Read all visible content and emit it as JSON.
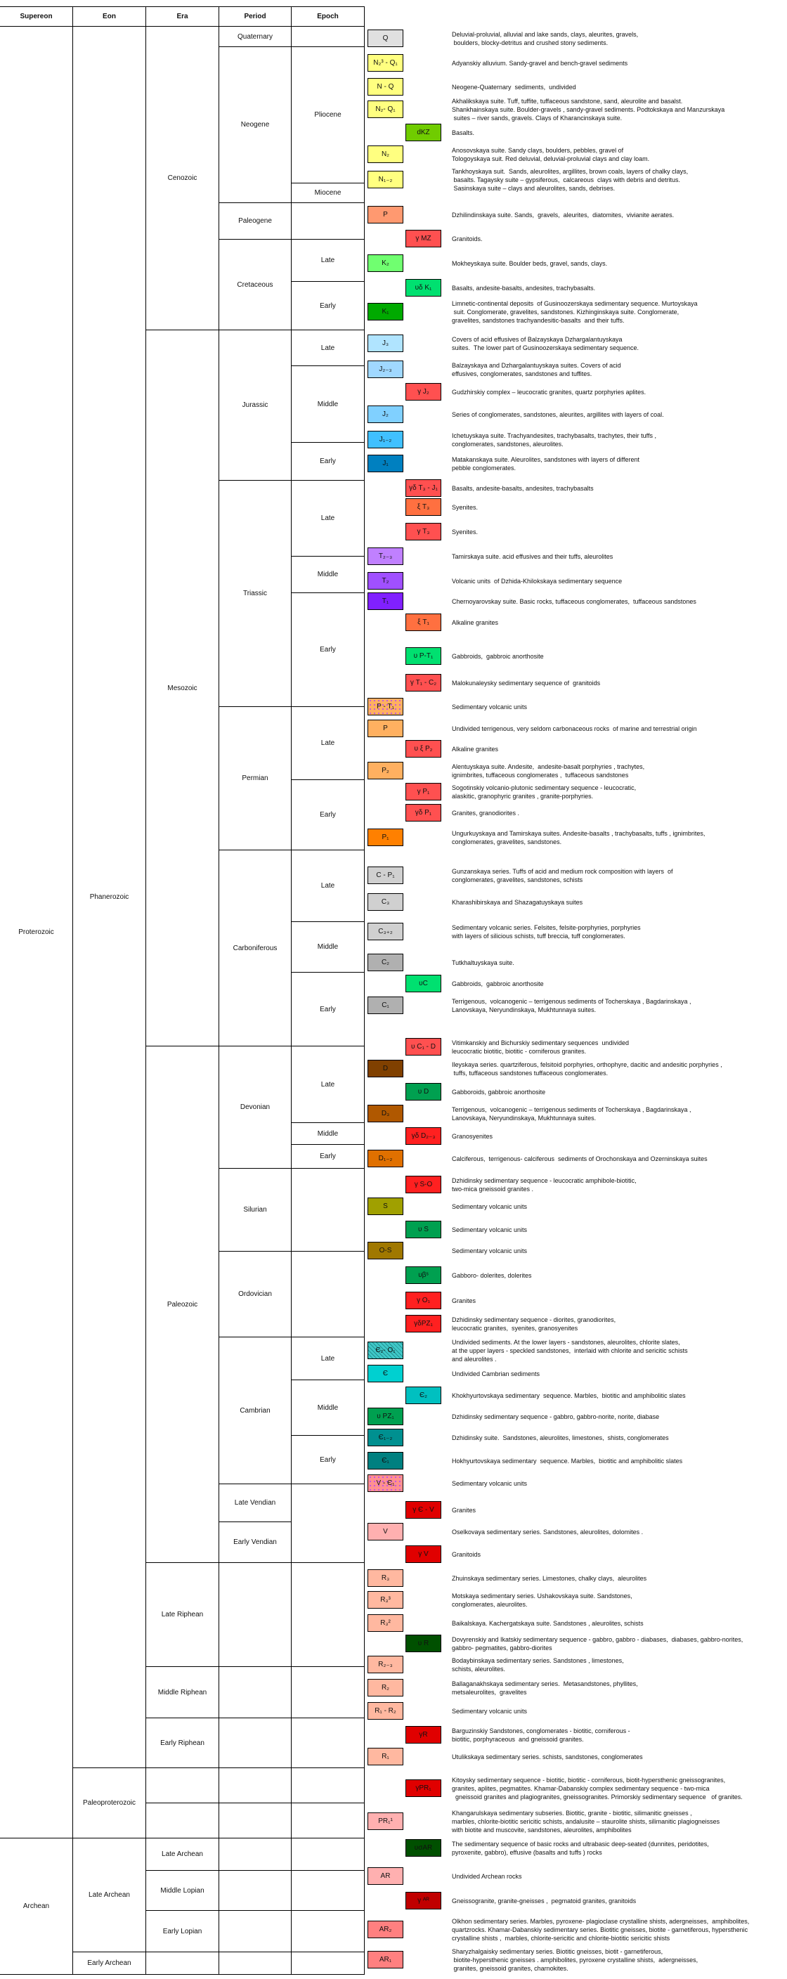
{
  "headers": [
    "Supereon",
    "Eon",
    "Era",
    "Period",
    "Epoch"
  ],
  "supereon": [
    "Proterozoic",
    "Archean"
  ],
  "eon": [
    "Phanerozoic",
    "Paleoproterozoic",
    "Late Archean",
    "Early Archean"
  ],
  "era": [
    "Cenozoic",
    "Mesozoic",
    "Paleozoic",
    "Late Riphean",
    "Middle Riphean",
    "Early Riphean",
    "",
    "",
    "Late Archean",
    "Middle Lopian",
    "Early Lopian",
    ""
  ],
  "period": [
    "Quaternary",
    "Neogene",
    "Paleogene",
    "Cretaceous",
    "Jurassic",
    "Triassic",
    "Permian",
    "Carboniferous",
    "Devonian",
    "Silurian",
    "Ordovician",
    "Cambrian",
    "Late Vendian",
    "Early Vendian",
    "",
    "",
    "",
    "",
    "",
    "",
    "",
    "",
    ""
  ],
  "epoch": [
    "",
    "Pliocene",
    "Miocene",
    "",
    "Late",
    "Early",
    "Late",
    "Middle",
    "Early",
    "Late",
    "Middle",
    "Early",
    "Late",
    "Early",
    "Late",
    "Middle",
    "Early",
    "Late",
    "Middle",
    "Early",
    "",
    "",
    "Late",
    "Middle",
    "Early",
    "",
    "",
    "",
    "",
    "",
    "",
    "",
    "",
    "",
    ""
  ],
  "legend": [
    {
      "code": "Q",
      "color": "#e0e0e0",
      "text": [
        "Deluvial-proluvial, alluvial and lake sands, clays, aleurites, gravels,",
        " boulders, blocky-detritus and crushed stony sediments."
      ]
    },
    {
      "code": "N₂³ - Q₁",
      "color": "#ffff80",
      "text": [
        "Adyanskiy alluvium. Sandy-gravel and bench-gravel sediments"
      ]
    },
    {
      "code": "N - Q",
      "color": "#ffff80",
      "text": [
        "Neogene-Quaternary  sediments,  undivided"
      ]
    },
    {
      "code": "N₂- Q₁",
      "color": "#ffff80",
      "text": [
        "Akhalikskaya suite. Tuff, tuffite, tuffaceous sandstone, sand, aleurolite and basalst.",
        "Shankhainskaya suite. Boulder-gravels , sandy-gravel sediments. Podtokskaya and Manzurskaya",
        " suites – river sands, gravels. Clays of Kharancinskaya suite."
      ]
    },
    {
      "code": "dKZ",
      "color": "#70cc00",
      "text": [
        "Basalts."
      ]
    },
    {
      "code": "N₂",
      "color": "#ffff80",
      "text": [
        "Anosovskaya suite. Sandy clays, boulders, pebbles, gravel of",
        "Tologoyskaya suit. Red deluvial, deluvial-proluvial clays and clay loam."
      ]
    },
    {
      "code": "N₁₋₂",
      "color": "#ffff80",
      "text": [
        "Tankhoyskaya suit.  Sands, aleurolites, argillites, brown coals, layers of chalky clays,",
        " basalts. Tagaysky suite – gypsiferous,  calcareous  clays with debris and detritus.",
        " Sasinskaya suite – clays and aleurolites, sands, debrises."
      ]
    },
    {
      "code": "P",
      "color": "#ff9970",
      "text": [
        "Dzhilindinskaya suite. Sands,  gravels,  aleurites,  diatomites,  vivianite aerates."
      ]
    },
    {
      "code": "γ MZ",
      "color": "#ff5050",
      "text": [
        "Granitoids."
      ]
    },
    {
      "code": "K₂",
      "color": "#70ff70",
      "text": [
        "Mokheyskaya suite. Boulder beds, gravel, sands, clays."
      ]
    },
    {
      "code": "υδ K₁",
      "color": "#00e070",
      "text": [
        "Basalts, andesite-basalts, andesites, trachybasalts."
      ]
    },
    {
      "code": "K₁",
      "color": "#00aa00",
      "text": [
        "Limnetic-continental deposits  of Gusinoozerskaya sedimentary sequence. Murtoyskaya",
        " suit. Conglomerate, gravelites, sandstones. Kizhinginskaya suite. Conglomerate,",
        "gravelites, sandstones trachyandesitic-basalts  and their tuffs."
      ]
    },
    {
      "code": "J₃",
      "color": "#b0e4ff",
      "text": [
        "Covers of acid effusives of Balzayskaya Dzhargalantuyskaya",
        "suites.  The lower part of Gusinoozerskaya sedimentary sequence."
      ]
    },
    {
      "code": "J₂₋₃",
      "color": "#a0d8ff",
      "text": [
        "Balzayskaya and Dzhargalantuyskaya suites. Covers of acid",
        "effusives, conglomerates, sandstones and tuffites."
      ]
    },
    {
      "code": "γ J₂",
      "color": "#ff5050",
      "text": [
        "Gudzhirskiy complex – leucocratic granites, quartz porphyries aplites."
      ]
    },
    {
      "code": "J₂",
      "color": "#80d0ff",
      "text": [
        "Series of conglomerates, sandstones, aleurites, argillites with layers of coal."
      ]
    },
    {
      "code": "J₁₋₂",
      "color": "#40c0ff",
      "text": [
        "Ichetuyskaya suite. Trachyandesites, trachybasalts, trachytes, their tuffs ,",
        "conglomerates, sandstones, aleurolites."
      ]
    },
    {
      "code": "J₁",
      "color": "#0080c0",
      "text": [
        "Matakanskaya suite. Aleurolites, sandstones with layers of different",
        "pebble conglomerates."
      ]
    },
    {
      "code": "γδ T₃ - J₁",
      "color": "#ff5050",
      "text": [
        "Basalts, andesite-basalts, andesites, trachybasalts"
      ]
    },
    {
      "code": "ξ T₃",
      "color": "#ff7040",
      "text": [
        "Syenites."
      ]
    },
    {
      "code": "γ T₃",
      "color": "#ff5050",
      "text": [
        "Syenites."
      ]
    },
    {
      "code": "T₂₋₃",
      "color": "#c080ff",
      "text": [
        "Tamirskaya suite. acid effusives and their tuffs, aleurolites"
      ]
    },
    {
      "code": "T₂",
      "color": "#a050ff",
      "text": [
        "Volcanic units  of Dzhida-Khilokskaya sedimentary sequence"
      ]
    },
    {
      "code": "T₁",
      "color": "#8020ff",
      "text": [
        "Chernoyarovskay suite. Basic rocks, tuffaceous conglomerates,  tuffaceous sandstones"
      ]
    },
    {
      "code": "ξ T₁",
      "color": "#ff7040",
      "text": [
        "Alkaline granites"
      ]
    },
    {
      "code": "υ P-T₁",
      "color": "#00e070",
      "text": [
        "Gabbroids,  gabbroic anorthosite"
      ]
    },
    {
      "code": "γ T₁ - C₂",
      "color": "#ff5050",
      "text": [
        "Malokunaleysky sedimentary sequence of  granitoids"
      ]
    },
    {
      "code": "P - T₁",
      "color": "#ffb060",
      "text": [
        "Sedimentary volcanic units"
      ]
    },
    {
      "code": "P",
      "color": "#ffb060",
      "text": [
        "Undivided terrigenous, very seldom carbonaceous rocks  of marine and terrestrial origin"
      ]
    },
    {
      "code": "υ ξ P₂",
      "color": "#ff5050",
      "text": [
        "Alkaline granites"
      ]
    },
    {
      "code": "P₂",
      "color": "#ffb060",
      "text": [
        "Alentuyskaya suite. Andesite,  andesite-basalt porphyries , trachytes,",
        "ignimbrites, tuffaceous conglomerates ,  tuffaceous sandstones"
      ]
    },
    {
      "code": "γ P₁",
      "color": "#ff5050",
      "text": [
        "Sogotinskiy volcanio-plutonic sedimentary sequence - leucocratic,",
        "alaskitic, granophyric granites , granite-porphyries."
      ]
    },
    {
      "code": "γδ P₁",
      "color": "#ff5050",
      "text": [
        "Granites, granodiorites ."
      ]
    },
    {
      "code": "P₁",
      "color": "#ff8000",
      "text": [
        "Ungurkuyskaya and Tamirskaya suites. Andesite-basalts , trachybasalts, tuffs , ignimbrites,",
        "conglomerates, gravelites, sandstones."
      ]
    },
    {
      "code": "C - P₁",
      "color": "#d0d0d0",
      "text": [
        "Gunzanskaya series. Tuffs of acid and medium rock composition with layers  of",
        "conglomerates, gravelites, sandstones, schists"
      ]
    },
    {
      "code": "C₃",
      "color": "#d0d0d0",
      "text": [
        "Kharashibirskaya and Shazagatuyskaya suites"
      ]
    },
    {
      "code": "C₃₊₂",
      "color": "#d0d0d0",
      "text": [
        "Sedimentary volcanic series. Felsites, felsite-porphyries, porphyries",
        "with layers of silicious schists, tuff breccia, tuff conglomerates."
      ]
    },
    {
      "code": "C₂",
      "color": "#b0b0b0",
      "text": [
        "Tutkhaltuyskaya suite."
      ]
    },
    {
      "code": "υC",
      "color": "#00e070",
      "text": [
        "Gabbroids,  gabbroic anorthosite"
      ]
    },
    {
      "code": "C₁",
      "color": "#b0b0b0",
      "text": [
        "Terrigenous,  volcanogenic – terrigenous sediments of Tocherskaya , Bagdarinskaya ,",
        "Lanovskaya, Neryundinskaya, Mukhtunnaya suites."
      ]
    },
    {
      "code": "υ C₁ - D",
      "color": "#ff5050",
      "text": [
        "Vitimkanskiy and Bichurskiy sedimentary sequences  undivided",
        "leucocratic biotitic, biotitic - corniferous granites."
      ]
    },
    {
      "code": "D",
      "color": "#804000",
      "text": [
        "Ileyskaya series. quartziferous, felsitoid porphyries, orthophyre, dacitic and andesitic porphyries ,",
        " tuffs, tuffaceous sandstones tuffaceous conglomerates."
      ]
    },
    {
      "code": "υ D",
      "color": "#00a050",
      "text": [
        "Gabboroids, gabbroic anorthosite"
      ]
    },
    {
      "code": "D₃",
      "color": "#b05800",
      "text": [
        "Terrigenous,  volcanogenic – terrigenous sediments of Tocherskaya , Bagdarinskaya ,",
        "Lanovskaya, Neryundinskaya, Mukhtunnaya suites."
      ]
    },
    {
      "code": "γδ D₂₋₃",
      "color": "#ff2020",
      "text": [
        "Granosyenites"
      ]
    },
    {
      "code": "D₁₋₂",
      "color": "#e07000",
      "text": [
        "Calciferous,  terrigenous- calciferous  sediments of Orochonskaya and Ozerninskaya suites"
      ]
    },
    {
      "code": "γ S-O",
      "color": "#ff2020",
      "text": [
        "Dzhidinsky sedimentary sequence - leucocratic amphibole-biotitic,",
        "two-mica gneissoid granites ."
      ]
    },
    {
      "code": "S",
      "color": "#a0a000",
      "text": [
        "Sedimentary volcanic units"
      ]
    },
    {
      "code": "υ S",
      "color": "#00a050",
      "text": [
        "Sedimentary volcanic units"
      ]
    },
    {
      "code": "O-S",
      "color": "#a07800",
      "text": [
        "Sedimentary volcanic units"
      ]
    },
    {
      "code": "υβˢ",
      "color": "#00a050",
      "text": [
        "Gabboro- dolerites, dolerites"
      ]
    },
    {
      "code": "γ O₁",
      "color": "#ff2020",
      "text": [
        "Granites"
      ]
    },
    {
      "code": "γδPZ₁",
      "color": "#ff2020",
      "text": [
        "Dzhidinsky sedimentary sequence - diorites, granodiorites,",
        "leucocratic granites,  syenites, granosyenites"
      ]
    },
    {
      "code": "Є₂- O₁",
      "color": "#40c8c8",
      "text": [
        "Undivided sediments. At the lower layers - sandstones, aleurolites, chlorite slates,",
        "at the upper layers - speckled sandstones,  interlaid with chlorite and sericitic schists",
        "and aleurolites ."
      ]
    },
    {
      "code": "Є",
      "color": "#00d0d0",
      "text": [
        "Undivided Cambrian sediments"
      ]
    },
    {
      "code": "Є₂",
      "color": "#00c0c0",
      "text": [
        "Khokhyurtovskaya sedimentary  sequence. Marbles,  biotitic and amphibolitic slates"
      ]
    },
    {
      "code": "υ PZ₁",
      "color": "#00a050",
      "text": [
        "Dzhidinsky sedimentary sequence - gabbro, gabbro-norite, norite, diabase"
      ]
    },
    {
      "code": "Є₁₋₂",
      "color": "#009090",
      "text": [
        "Dzhidinsky suite.  Sandstones, aleurolites, limestones,  shists, conglomerates"
      ]
    },
    {
      "code": "Є₁",
      "color": "#008080",
      "text": [
        "Hokhyurtovskaya sedimentary  sequence. Marbles,  biotitic and amphibolitic slates"
      ]
    },
    {
      "code": "V - Є₁",
      "color": "#ff9090",
      "text": [
        "Sedimentary volcanic units"
      ]
    },
    {
      "code": "γ Є - V",
      "color": "#e00000",
      "text": [
        "Granites"
      ]
    },
    {
      "code": "V",
      "color": "#ffb0b0",
      "text": [
        "Oselkovaya sedimentary series. Sandstones, aleurolites, dolomites ."
      ]
    },
    {
      "code": "γ V",
      "color": "#e00000",
      "text": [
        "Granitoids"
      ]
    },
    {
      "code": "R₃",
      "color": "#ffb8a0",
      "text": [
        "Zhuinskaya sedimentary series. Limestones, chalky clays,  aleurolites"
      ]
    },
    {
      "code": "R₃³",
      "color": "#ffb8a0",
      "text": [
        "Motskaya sedimentary series. Ushakovskaya suite. Sandstones,",
        "conglomerates, aleurolites."
      ]
    },
    {
      "code": "R₃²",
      "color": "#ffb8a0",
      "text": [
        "Baikalskaya. Kachergatskaya suite. Sandstones , aleurolites, schists"
      ]
    },
    {
      "code": "υ R",
      "color": "#005000",
      "text": [
        "Dovyrenskiy and Ikatskiy sedimentary sequence - gabbro, gabbro - diabases,  diabases, gabbro-norites,",
        "gabbro- pegmatites, gabbro-diorites"
      ]
    },
    {
      "code": "R₂₋₃",
      "color": "#ffb8a0",
      "text": [
        "Bodaybinskaya sedimentary series. Sandstones , limestones,",
        "schists, aleurolites."
      ]
    },
    {
      "code": "R₂",
      "color": "#ffb8a0",
      "text": [
        "Ballaganakhskaya sedimentary series.  Metasandstones, phyllites,",
        "metsaleurolites,  gravelites"
      ]
    },
    {
      "code": "R₁ - R₂",
      "color": "#ffb8a0",
      "text": [
        "Sedimentary volcanic units"
      ]
    },
    {
      "code": "γR",
      "color": "#e00000",
      "text": [
        "Barguzinskiy Sandstones, conglomerates - biotitic, corniferous -",
        "biotitic, porphyraceous  and gneissoid granites."
      ]
    },
    {
      "code": "R₁",
      "color": "#ffb8a0",
      "text": [
        "Utulikskaya sedimentary series. schists, sandstones, conglomerates"
      ]
    },
    {
      "code": "γPR₁",
      "color": "#e00000",
      "text": [
        "Kitoysky sedimentary sequence - biotitic, biotitic - corniferous, biotit-hypersthenic gneissogranites,",
        "granites, aplites, pegmatites. Khamar-Dabanskiy complex sedimentary sequence - two-mica",
        "  gneissoid granites and plagiogranites, gneissogranites. Primorskiy sedimentary sequence   of granites."
      ]
    },
    {
      "code": "PR₁¹",
      "color": "#ffb0b0",
      "text": [
        "Khangarulskaya sedimentary subseries. Biotitic, granite - biotitic, silimanitic gneisses ,",
        "marbles, chlorite-biotitic sericitic schists, andalusite – staurolite shists, silimanitic plagiogneisses",
        "with biotite and muscovite, sandstones, aleurolites, amphibolites"
      ]
    },
    {
      "code": "υσAR",
      "color": "#005000",
      "text": [
        "The sedimentary sequence of basic rocks and ultrabasic deep-seated (dunnites, peridotites,",
        "pyroxenite, gabbro), effusive (basalts and tuffs ) rocks"
      ]
    },
    {
      "code": "AR",
      "color": "#ffb0b0",
      "text": [
        "Undivided Archean rocks"
      ]
    },
    {
      "code": "γ ᴬᴿ",
      "color": "#c00000",
      "text": [
        "Gneissogranite, granite-gneisses ,  pegmatoid granites, granitoids"
      ]
    },
    {
      "code": "AR₂",
      "color": "#ff8080",
      "text": [
        "Olkhon sedimentary series. Marbles, pyroxene- plagioclase crystalline shists, adergneisses,  amphibolites,",
        "quartzrocks. Khamar-Dabanskiy sedimentary series. Biotitic gneisses, biotite - garnetiferous, hypersthenic",
        "crystalline shists ,  marbles, chlorite-sericitic and chlorite-biotitic sericitic shists"
      ]
    },
    {
      "code": "AR₁",
      "color": "#ff8080",
      "text": [
        "Sharyzhalgaisky sedimentary series. Biotitic gneisses, biotit - garnetiferous,",
        " biotite-hypersthenic gneisses . amphibolites, pyroxene crystalline shists,  adergneisses,",
        " granites, gneissoid granites, charnokites."
      ]
    }
  ]
}
